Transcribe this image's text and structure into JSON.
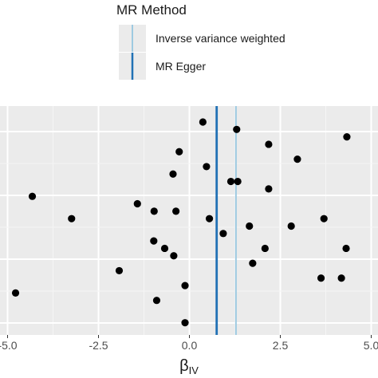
{
  "chart_data": {
    "type": "scatter",
    "xlabel": "β",
    "xlabel_sub": "IV",
    "xlim": [
      -5.1,
      5.0
    ],
    "x_ticks": [
      -5.0,
      -2.5,
      0.0,
      2.5,
      5.0
    ],
    "x_tick_labels": [
      "-5.0",
      "-2.5",
      "0.0",
      "2.5",
      "5.0"
    ],
    "grid": true,
    "legend": {
      "title": "MR Method",
      "position": "top",
      "entries": [
        {
          "label": "Inverse variance weighted",
          "color": "#9ecae1"
        },
        {
          "label": "MR Egger",
          "color": "#2171b5"
        }
      ]
    },
    "vlines": [
      {
        "method": "Inverse variance weighted",
        "x": 1.28,
        "color": "#9ecae1"
      },
      {
        "method": "MR Egger",
        "x": 0.75,
        "color": "#2171b5"
      }
    ],
    "points": [
      {
        "x": 0.37,
        "y": 28
      },
      {
        "x": 1.3,
        "y": 27
      },
      {
        "x": 4.33,
        "y": 26
      },
      {
        "x": 2.18,
        "y": 25
      },
      {
        "x": -0.28,
        "y": 24
      },
      {
        "x": 2.97,
        "y": 23
      },
      {
        "x": 0.47,
        "y": 22
      },
      {
        "x": -0.45,
        "y": 21
      },
      {
        "x": 1.14,
        "y": 20
      },
      {
        "x": 1.33,
        "y": 20
      },
      {
        "x": 2.18,
        "y": 19
      },
      {
        "x": -4.32,
        "y": 18
      },
      {
        "x": -1.43,
        "y": 17
      },
      {
        "x": -0.97,
        "y": 16
      },
      {
        "x": -0.37,
        "y": 16
      },
      {
        "x": -3.24,
        "y": 15
      },
      {
        "x": 0.55,
        "y": 15
      },
      {
        "x": 3.7,
        "y": 15
      },
      {
        "x": 1.65,
        "y": 14
      },
      {
        "x": 2.8,
        "y": 14
      },
      {
        "x": 0.93,
        "y": 13
      },
      {
        "x": -0.98,
        "y": 12
      },
      {
        "x": -0.68,
        "y": 11
      },
      {
        "x": 2.08,
        "y": 11
      },
      {
        "x": 4.31,
        "y": 11
      },
      {
        "x": -0.43,
        "y": 10
      },
      {
        "x": 1.74,
        "y": 9
      },
      {
        "x": -1.93,
        "y": 8
      },
      {
        "x": 3.62,
        "y": 7
      },
      {
        "x": 4.18,
        "y": 7
      },
      {
        "x": -0.12,
        "y": 6
      },
      {
        "x": -4.78,
        "y": 5
      },
      {
        "x": -0.9,
        "y": 4
      },
      {
        "x": -0.12,
        "y": 1
      }
    ]
  }
}
